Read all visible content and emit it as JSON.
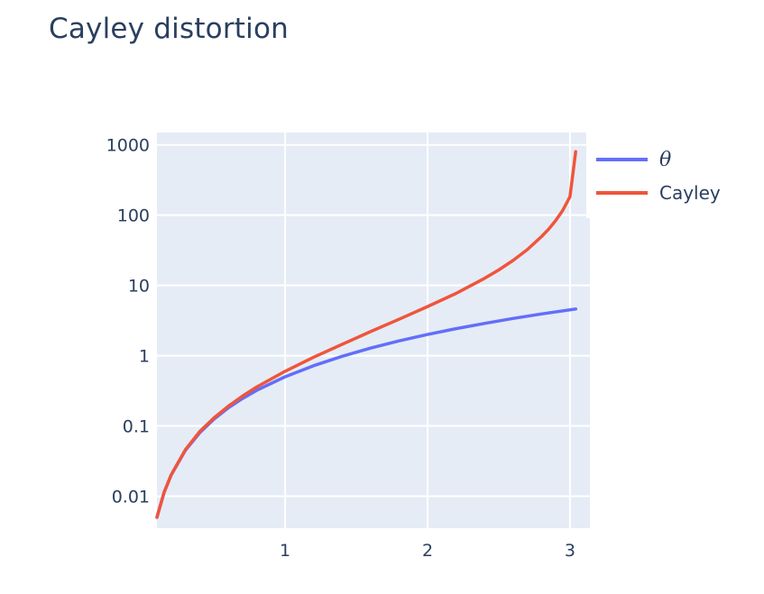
{
  "chart_data": {
    "type": "line",
    "title": "Cayley distortion",
    "xlabel": "",
    "ylabel": "",
    "y_scale": "log",
    "xlim": [
      0.1,
      3.14
    ],
    "ylim": [
      0.0035,
      1500
    ],
    "x_ticks": [
      1,
      2,
      3
    ],
    "x_tick_labels": [
      "1",
      "2",
      "3"
    ],
    "y_ticks": [
      0.01,
      0.1,
      1,
      10,
      100,
      1000
    ],
    "y_tick_labels": [
      "0.01",
      "0.1",
      "1",
      "10",
      "100",
      "1000"
    ],
    "grid": true,
    "legend_position": "top-right",
    "series": [
      {
        "name": "θ",
        "color": "#636efa",
        "x": [
          0.1,
          0.15,
          0.2,
          0.3,
          0.4,
          0.5,
          0.6,
          0.7,
          0.8,
          1.0,
          1.2,
          1.4,
          1.6,
          1.8,
          2.0,
          2.2,
          2.4,
          2.6,
          2.8,
          3.04
        ],
        "y": [
          0.005,
          0.0113,
          0.02,
          0.045,
          0.08,
          0.125,
          0.18,
          0.245,
          0.32,
          0.5,
          0.72,
          0.98,
          1.28,
          1.62,
          2.0,
          2.42,
          2.88,
          3.38,
          3.92,
          4.62
        ]
      },
      {
        "name": "Cayley",
        "color": "#ef553b",
        "x": [
          0.1,
          0.15,
          0.2,
          0.3,
          0.4,
          0.5,
          0.6,
          0.7,
          0.8,
          1.0,
          1.2,
          1.4,
          1.6,
          1.8,
          2.0,
          2.2,
          2.4,
          2.5,
          2.6,
          2.7,
          2.8,
          2.85,
          2.9,
          2.95,
          3.0,
          3.04
        ],
        "y": [
          0.005,
          0.0113,
          0.0202,
          0.046,
          0.083,
          0.13,
          0.19,
          0.265,
          0.357,
          0.6,
          0.95,
          1.45,
          2.2,
          3.3,
          5.0,
          7.7,
          12.6,
          16.6,
          22.6,
          32.2,
          49.4,
          63.1,
          84.0,
          117.5,
          183.0,
          800.0
        ]
      }
    ]
  }
}
